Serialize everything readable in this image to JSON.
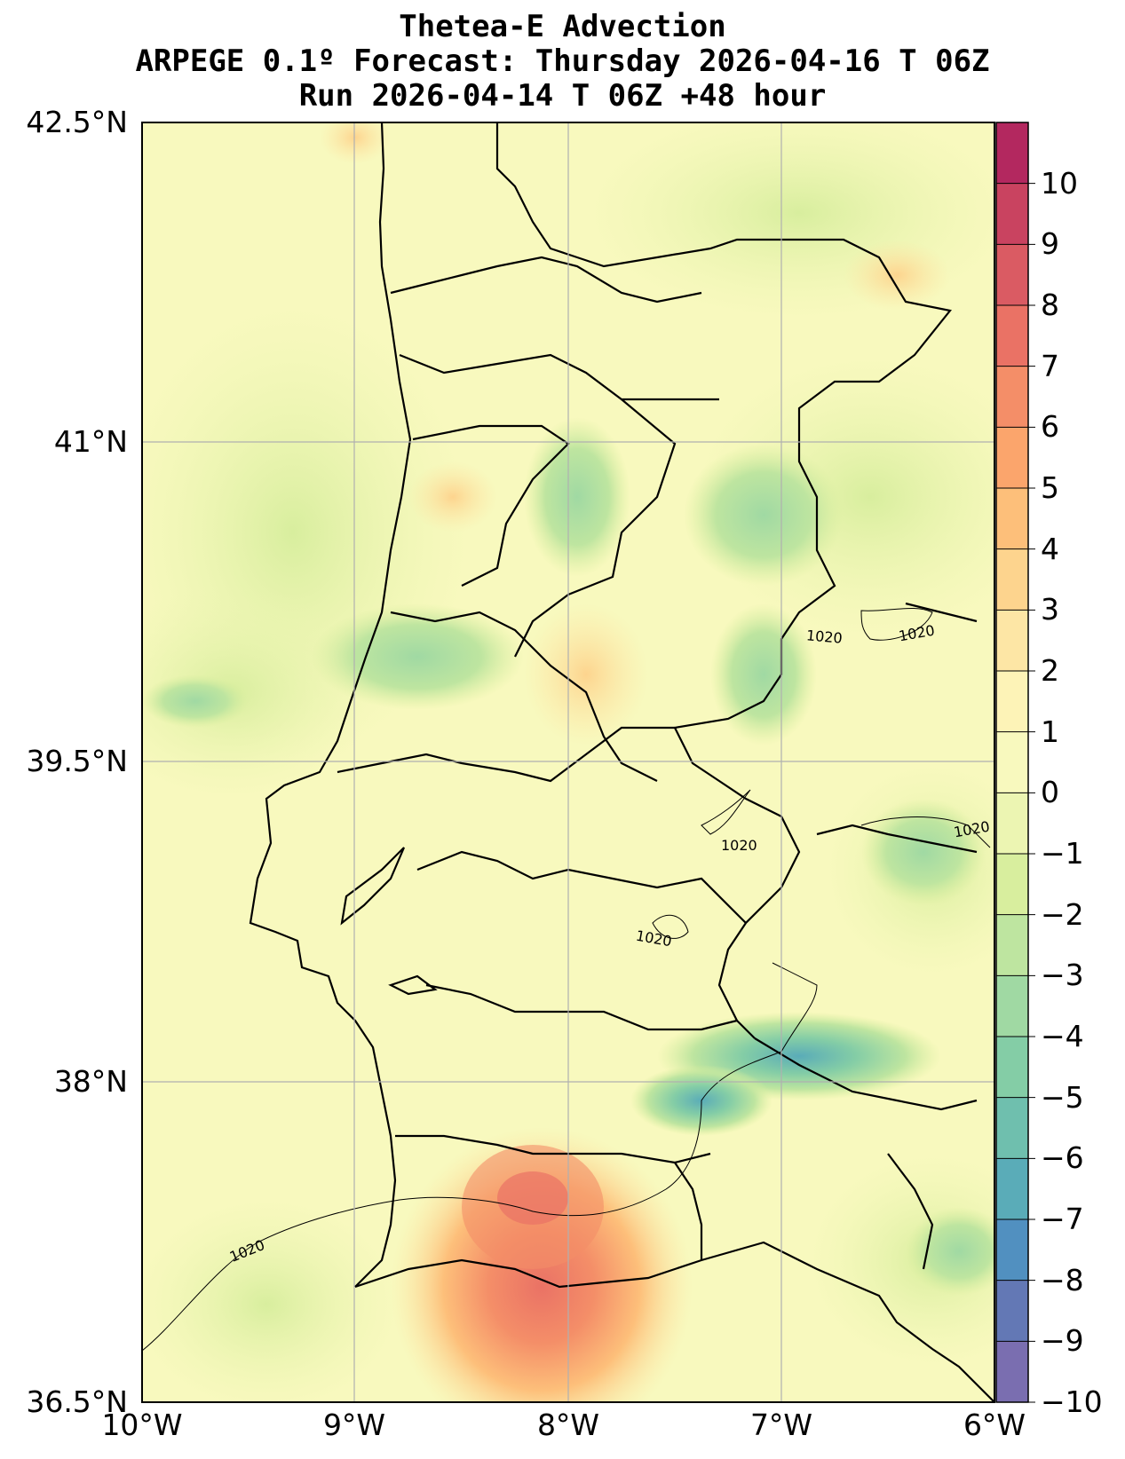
{
  "title": {
    "line1": "Thetea-E Advection",
    "line2": "ARPEGE 0.1º Forecast: Thursday 2026-04-16 T 06Z",
    "line3": "Run 2026-04-14 T 06Z +48 hour"
  },
  "axes": {
    "lat_labels": [
      "42.5°N",
      "41°N",
      "39.5°N",
      "38°N",
      "36.5°N"
    ],
    "lon_labels": [
      "10°W",
      "9°W",
      "8°W",
      "7°W",
      "6°W"
    ]
  },
  "colorbar": {
    "labels": [
      "10",
      "9",
      "8",
      "7",
      "6",
      "5",
      "4",
      "3",
      "2",
      "1",
      "0",
      "−1",
      "−2",
      "−3",
      "−4",
      "−5",
      "−6",
      "−7",
      "−8",
      "−9",
      "−10"
    ],
    "colors": [
      "#b3285f",
      "#c94360",
      "#da5b63",
      "#ea7265",
      "#f48e68",
      "#fba56c",
      "#fdbf7a",
      "#fdd48e",
      "#fde6a5",
      "#fdf3b7",
      "#f8f9be",
      "#ecf5b2",
      "#d8ee9e",
      "#bee5a0",
      "#a0d9a3",
      "#84cda6",
      "#6fbfae",
      "#5aacb8",
      "#5190c0",
      "#6378b5",
      "#7a6eb0"
    ]
  },
  "chart_data": {
    "type": "heatmap",
    "title": "Thetea-E Advection",
    "subtitle": "ARPEGE 0.1º Forecast: Thursday 2026-04-16 T 06Z / Run 2026-04-14 T 06Z +48 hour",
    "xlabel": "",
    "ylabel": "",
    "xlim": [
      -10,
      -6
    ],
    "ylim": [
      36.5,
      42.5
    ],
    "x_ticks": [
      "10°W",
      "9°W",
      "8°W",
      "7°W",
      "6°W"
    ],
    "y_ticks": [
      "42.5°N",
      "41°N",
      "39.5°N",
      "38°N",
      "36.5°N"
    ],
    "colorbar_range": [
      -10,
      10
    ],
    "grid": true,
    "isobar_label": "1020",
    "isobar_labels_shown": [
      "1020",
      "1020",
      "1020",
      "1020",
      "1020",
      "1020"
    ]
  }
}
